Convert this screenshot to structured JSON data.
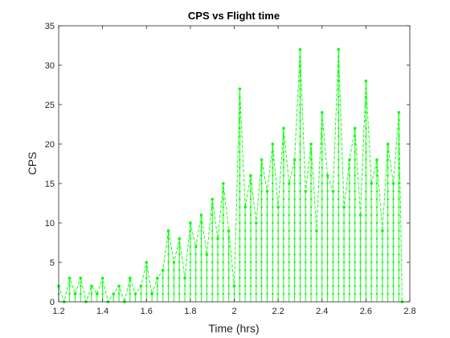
{
  "chart_data": {
    "type": "line",
    "title": "CPS vs Flight time",
    "xlabel": "Time (hrs)",
    "ylabel": "CPS",
    "xlim": [
      1.2,
      2.8
    ],
    "ylim": [
      0,
      35
    ],
    "xticks": [
      1.2,
      1.4,
      1.6,
      1.8,
      2,
      2.2,
      2.4,
      2.6,
      2.8
    ],
    "xtick_labels": [
      "1.2",
      "1.4",
      "1.6",
      "1.8",
      "2",
      "2.2",
      "2.4",
      "2.6",
      "2.8"
    ],
    "yticks": [
      0,
      5,
      10,
      15,
      20,
      25,
      30,
      35
    ],
    "ytick_labels": [
      "0",
      "5",
      "10",
      "15",
      "20",
      "25",
      "30",
      "35"
    ],
    "grid": false,
    "line_style": "dashed with dot markers",
    "series": [
      {
        "color": "#00ff00",
        "x": [
          1.2,
          1.225,
          1.25,
          1.275,
          1.3,
          1.325,
          1.35,
          1.375,
          1.4,
          1.425,
          1.45,
          1.475,
          1.5,
          1.525,
          1.55,
          1.575,
          1.6,
          1.625,
          1.65,
          1.675,
          1.7,
          1.725,
          1.75,
          1.775,
          1.8,
          1.825,
          1.85,
          1.875,
          1.9,
          1.925,
          1.95,
          1.975,
          2,
          2.025,
          2.05,
          2.075,
          2.1,
          2.125,
          2.15,
          2.175,
          2.2,
          2.225,
          2.25,
          2.275,
          2.3,
          2.325,
          2.35,
          2.375,
          2.4,
          2.425,
          2.45,
          2.475,
          2.5,
          2.525,
          2.55,
          2.575,
          2.6,
          2.625,
          2.65,
          2.675,
          2.7,
          2.725,
          2.75,
          2.765
        ],
        "y": [
          2,
          0,
          3,
          1,
          3,
          0,
          2,
          1,
          3,
          0,
          1,
          2,
          0,
          3,
          1,
          2,
          5,
          1,
          3,
          4,
          9,
          5,
          8,
          3,
          10,
          7,
          11,
          6,
          13,
          8,
          15,
          9,
          2,
          27,
          12,
          16,
          10,
          18,
          14,
          20,
          12,
          22,
          15,
          18,
          32,
          14,
          20,
          9,
          24,
          16,
          14,
          32,
          12,
          18,
          22,
          11,
          28,
          15,
          18,
          9,
          20,
          15,
          24,
          0
        ]
      }
    ]
  }
}
